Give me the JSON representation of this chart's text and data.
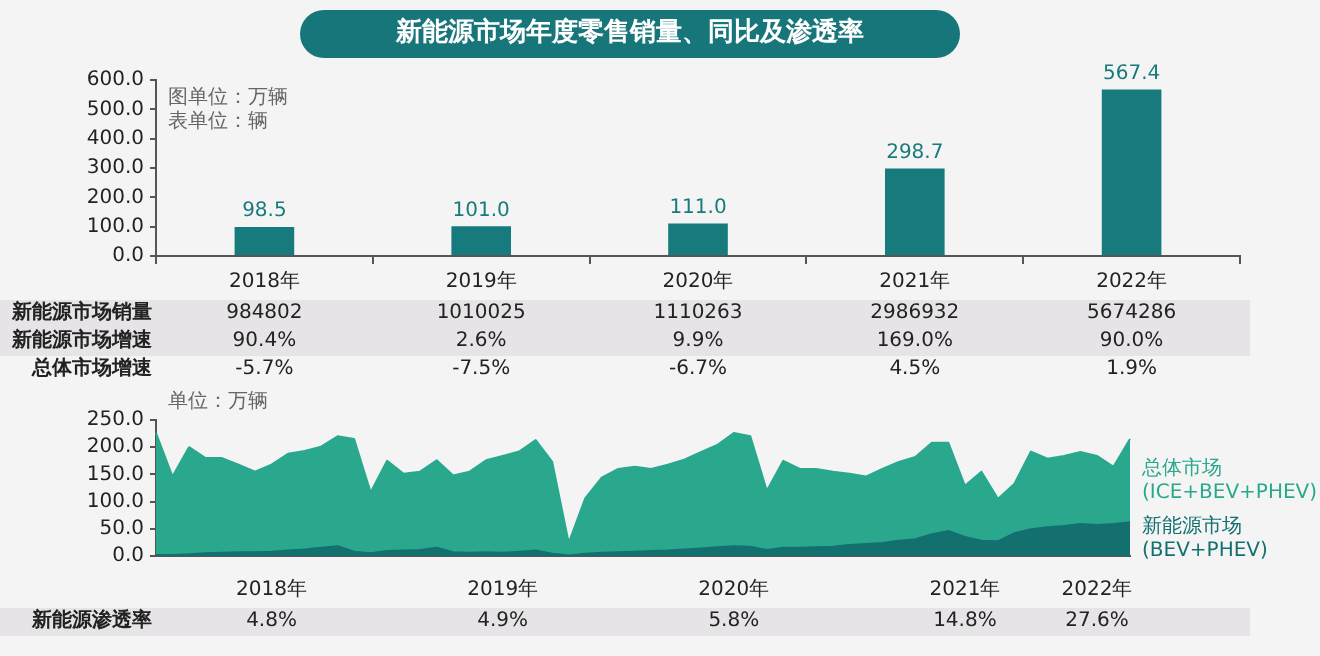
{
  "chart_data": [
    {
      "type": "bar",
      "title": "新能源市场年度零售销量、同比及渗透率",
      "categories": [
        "2018年",
        "2019年",
        "2020年",
        "2021年",
        "2022年"
      ],
      "series": [
        {
          "color": "#177a7c",
          "values": [
            98.5,
            101.0,
            111.0,
            298.7,
            567.4
          ],
          "value_labels": [
            "98.5",
            "101.0",
            "111.0",
            "298.7",
            "567.4"
          ]
        }
      ],
      "ylim": [
        0,
        600
      ],
      "yticks": [
        {
          "value": 0,
          "label": "0.0"
        },
        {
          "value": 100,
          "label": "100.0"
        },
        {
          "value": 200,
          "label": "200.0"
        },
        {
          "value": 300,
          "label": "300.0"
        },
        {
          "value": 400,
          "label": "400.0"
        },
        {
          "value": 500,
          "label": "500.0"
        },
        {
          "value": 600,
          "label": "600.0"
        }
      ],
      "annotations": [
        "图单位：万辆",
        "表单位：辆"
      ]
    },
    {
      "type": "other",
      "annotations": [
        "新能源市场销量",
        "984802",
        "1010025",
        "1110263",
        "2986932",
        "5674286",
        "新能源市场增速",
        "90.4%",
        "2.6%",
        "9.9%",
        "169.0%",
        "90.0%",
        "总体市场增速",
        "-5.7%",
        "-7.5%",
        "-6.7%",
        "4.5%",
        "1.9%"
      ]
    },
    {
      "type": "area",
      "categories": [
        null,
        null,
        null,
        null,
        null,
        null,
        null,
        "2018年",
        null,
        null,
        null,
        null,
        null,
        null,
        null,
        null,
        null,
        null,
        null,
        null,
        null,
        "2019年",
        null,
        null,
        null,
        null,
        null,
        null,
        null,
        null,
        null,
        null,
        null,
        null,
        null,
        "2020年",
        null,
        null,
        null,
        null,
        null,
        null,
        null,
        null,
        null,
        null,
        null,
        null,
        null,
        "2021年",
        null,
        null,
        null,
        null,
        null,
        null,
        null,
        "2022年",
        null,
        null
      ],
      "series": [
        {
          "name": "总体市场 (ICE+BEV+PHEV)",
          "color": "#2aa88e",
          "values": [
            226,
            146,
            200,
            180,
            180,
            168,
            155,
            168,
            188,
            193,
            201,
            220,
            215,
            117,
            175,
            151,
            155,
            176,
            148,
            155,
            176,
            184,
            192,
            213,
            173,
            24,
            106,
            144,
            160,
            164,
            160,
            168,
            177,
            191,
            204,
            226,
            220,
            120,
            175,
            160,
            160,
            155,
            151,
            146,
            160,
            173,
            182,
            208,
            208,
            129,
            155,
            105,
            133,
            192,
            179,
            184,
            191,
            184,
            164,
            215
          ]
        },
        {
          "name": "新能源市场 (BEV+PHEV)",
          "color": "#13706f",
          "values": [
            2,
            2,
            3,
            5,
            6,
            7,
            7,
            8,
            10,
            12,
            15,
            18,
            8,
            5,
            9,
            10,
            11,
            15,
            7,
            6,
            7,
            6,
            8,
            10,
            4,
            1,
            4,
            6,
            7,
            8,
            9,
            10,
            12,
            14,
            16,
            18,
            17,
            11,
            15,
            15,
            16,
            17,
            20,
            22,
            24,
            28,
            31,
            40,
            46,
            35,
            28,
            27,
            42,
            49,
            53,
            55,
            59,
            57,
            59,
            62
          ]
        }
      ],
      "ylim": [
        0,
        250
      ],
      "yticks": [
        {
          "value": 0,
          "label": "0.0"
        },
        {
          "value": 50,
          "label": "50.0"
        },
        {
          "value": 100,
          "label": "100.0"
        },
        {
          "value": 150,
          "label": "150.0"
        },
        {
          "value": 200,
          "label": "200.0"
        },
        {
          "value": 250,
          "label": "250.0"
        }
      ],
      "annotations": [
        "单位：万辆"
      ]
    },
    {
      "type": "other",
      "categories": [
        null,
        null,
        null,
        null,
        null
      ],
      "series": [
        {
          "name": "新能源渗透率",
          "values": [
            4.8,
            4.9,
            5.8,
            14.8,
            27.6
          ],
          "value_labels": [
            "4.8%",
            "4.9%",
            "5.8%",
            "14.8%",
            "27.6%"
          ]
        }
      ]
    }
  ]
}
